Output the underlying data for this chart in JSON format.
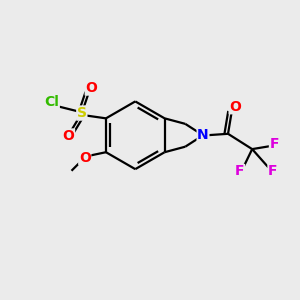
{
  "bg_color": "#ebebeb",
  "bond_color": "#000000",
  "bond_width": 1.6,
  "atom_colors": {
    "S": "#cccc00",
    "O": "#ff0000",
    "Cl": "#33bb00",
    "N": "#0000ff",
    "F": "#dd00dd",
    "C": "#000000"
  },
  "font_size": 10,
  "font_size_small": 9,
  "fig_w": 3.0,
  "fig_h": 3.0,
  "dpi": 100
}
